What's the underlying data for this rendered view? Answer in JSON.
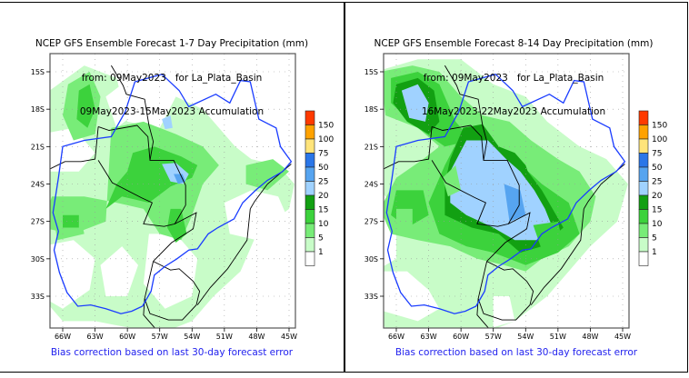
{
  "maps": [
    {
      "id": "left",
      "title_lines": [
        "NCEP GFS Ensemble Forecast 1-7 Day Precipitation (mm)",
        "from: 09May2023   for La_Plata_Basin",
        "09May2023-15May2023 Accumulation"
      ],
      "footnote": "Bias correction based on last 30-day forecast error",
      "pattern": "week1"
    },
    {
      "id": "right",
      "title_lines": [
        "NCEP GFS Ensemble Forecast 8-14 Day Precipitation (mm)",
        "from: 09May2023   for La_Plata_Basin",
        "16May2023-22May2023 Accumulation"
      ],
      "footnote": "Bias correction based on last 30-day forecast error",
      "pattern": "week2"
    }
  ],
  "lat_ticks": [
    "15S",
    "18S",
    "21S",
    "24S",
    "27S",
    "30S",
    "33S"
  ],
  "lat_values": [
    -15,
    -18,
    -21,
    -24,
    -27,
    -30,
    -33
  ],
  "lon_ticks": [
    "66W",
    "63W",
    "60W",
    "57W",
    "54W",
    "51W",
    "48W",
    "45W"
  ],
  "lon_values": [
    -66,
    -63,
    -60,
    -57,
    -54,
    -51,
    -48,
    -45
  ],
  "legend": {
    "labels": [
      "150",
      "100",
      "75",
      "50",
      "25",
      "20",
      "15",
      "10",
      "5",
      "1"
    ],
    "colors": [
      "#ff3a00",
      "#ffa200",
      "#ffe47a",
      "#2a76e8",
      "#56a4f0",
      "#a0d2ff",
      "#12a012",
      "#3cd23c",
      "#78ec78",
      "#c8fcc8",
      "#ffffff"
    ]
  },
  "colors": {
    "basin_outline": "#1a3cff",
    "country_border": "#000000",
    "footnote_text": "#2222ee"
  }
}
